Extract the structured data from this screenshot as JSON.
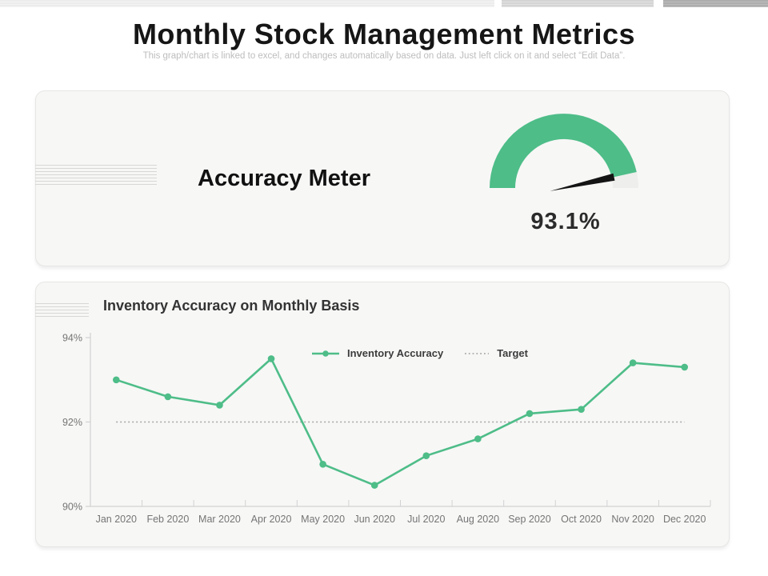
{
  "slide": {
    "title": "Monthly Stock Management Metrics",
    "subtitle": "This graph/chart is linked to excel, and changes automatically based on data. Just left click on it and select “Edit Data”."
  },
  "accuracy_meter": {
    "card_label": "Accuracy Meter",
    "value_percent": 93.1,
    "value_label": "93.1%",
    "scale_min": 0,
    "scale_max": 100,
    "fill_color": "#4ebd88",
    "track_color": "#eeeeec",
    "needle_color": "#141414"
  },
  "chart_data": {
    "type": "line",
    "title": "Inventory Accuracy on Monthly Basis",
    "categories": [
      "Jan 2020",
      "Feb 2020",
      "Mar 2020",
      "Apr 2020",
      "May 2020",
      "Jun 2020",
      "Jul 2020",
      "Aug 2020",
      "Sep 2020",
      "Oct 2020",
      "Nov 2020",
      "Dec 2020"
    ],
    "series": [
      {
        "name": "Inventory Accuracy",
        "style": "solid",
        "color": "#4ebd88",
        "values": [
          93.0,
          92.6,
          92.4,
          93.5,
          91.0,
          90.5,
          91.2,
          91.6,
          92.2,
          92.3,
          93.4,
          93.3
        ]
      },
      {
        "name": "Target",
        "style": "dotted",
        "color": "#9f9f9f",
        "value": 92
      }
    ],
    "xlabel": "",
    "ylabel": "",
    "ylim": [
      90,
      94
    ],
    "yticks": [
      {
        "value": 94,
        "label": "94%"
      },
      {
        "value": 92,
        "label": "92%"
      },
      {
        "value": 90,
        "label": "90%"
      }
    ],
    "grid": false,
    "legend_position": "top-center",
    "axis_color": "#d2d2d2"
  }
}
